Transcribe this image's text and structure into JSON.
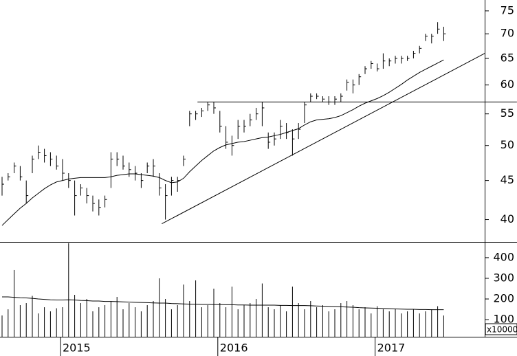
{
  "chart_data": {
    "type": "ohlc",
    "color": "#000000",
    "log_y": true,
    "categories": [
      null,
      null,
      null,
      null,
      null,
      null,
      null,
      null,
      null,
      null,
      "2015",
      null,
      null,
      null,
      null,
      null,
      null,
      null,
      null,
      null,
      null,
      null,
      null,
      null,
      null,
      null,
      null,
      null,
      null,
      null,
      null,
      null,
      null,
      null,
      null,
      null,
      "2016",
      null,
      null,
      null,
      null,
      null,
      null,
      null,
      null,
      null,
      null,
      null,
      null,
      null,
      null,
      null,
      null,
      null,
      null,
      null,
      null,
      null,
      null,
      null,
      null,
      null,
      "2017",
      null,
      null,
      null,
      null,
      null,
      null,
      null,
      null,
      null,
      null,
      null
    ],
    "high": [
      45.5,
      46,
      47.5,
      47,
      45,
      48.5,
      50,
      49.5,
      49,
      48.5,
      48,
      46,
      45,
      44.5,
      44,
      43,
      42.5,
      43,
      49,
      49,
      48.5,
      47.5,
      47,
      46,
      47.5,
      48,
      46,
      44.5,
      45.5,
      45.5,
      48.5,
      55.5,
      55.5,
      56,
      57,
      57,
      55.5,
      53,
      51.5,
      54,
      54,
      55,
      56,
      57,
      52,
      52,
      54,
      53.5,
      52.5,
      53.5,
      57,
      58.5,
      58.5,
      58,
      58,
      58,
      58.5,
      61,
      61,
      62,
      63.5,
      64.5,
      64,
      66,
      65,
      65.5,
      65.5,
      65.5,
      66.5,
      67.5,
      70,
      70,
      72.5,
      71.5
    ],
    "low": [
      43,
      45,
      46,
      45,
      42,
      46,
      48,
      47.5,
      47,
      46.5,
      45,
      44,
      40.5,
      43,
      42,
      41,
      40.5,
      41.5,
      44,
      47,
      46.5,
      45.5,
      45,
      44,
      46,
      45.5,
      43,
      40,
      43,
      43.5,
      47,
      53,
      54,
      54.5,
      55.5,
      55,
      52,
      49.5,
      48.5,
      51,
      52,
      53,
      54,
      53,
      49.5,
      50,
      51,
      51,
      48.5,
      51,
      53.5,
      57,
      57.5,
      57,
      56.5,
      56.5,
      57,
      59,
      58.5,
      60,
      62,
      63,
      62.5,
      63,
      63.5,
      64,
      64,
      64.5,
      65,
      66,
      68.5,
      68,
      70,
      68.5
    ],
    "close": [
      44.5,
      45.5,
      47,
      45.5,
      43,
      48,
      49,
      48.5,
      48,
      47,
      46,
      45,
      43,
      44,
      43,
      42,
      41.5,
      42.5,
      48,
      48,
      47,
      46.5,
      46,
      45,
      47,
      47,
      44,
      43,
      45,
      45,
      48,
      55,
      55,
      55.5,
      56.5,
      56,
      53,
      50.5,
      50,
      53,
      53,
      54,
      55,
      56,
      50.5,
      51,
      53,
      52,
      51,
      52.5,
      56.5,
      58,
      58,
      57.5,
      57,
      57.5,
      58,
      60.5,
      60,
      61.5,
      63,
      64,
      63,
      64.5,
      64.5,
      65,
      65,
      65,
      66,
      67,
      69.5,
      69.5,
      71,
      70
    ],
    "ma": [
      39.3,
      40,
      40.7,
      41.4,
      42,
      42.7,
      43.3,
      43.9,
      44.4,
      44.8,
      45,
      45.2,
      45.3,
      45.4,
      45.4,
      45.4,
      45.4,
      45.4,
      45.5,
      45.7,
      45.8,
      45.9,
      45.9,
      45.8,
      45.7,
      45.6,
      45.4,
      45,
      44.7,
      44.8,
      45.3,
      46.2,
      47,
      47.8,
      48.5,
      49.2,
      49.7,
      50.1,
      50.3,
      50.5,
      50.6,
      50.8,
      51,
      51.2,
      51.3,
      51.5,
      51.7,
      52,
      52.3,
      52.6,
      53.2,
      53.7,
      54,
      54.1,
      54.2,
      54.4,
      54.7,
      55.2,
      55.7,
      56.3,
      56.8,
      57.2,
      57.6,
      58.1,
      58.7,
      59.4,
      60.1,
      60.9,
      61.6,
      62.3,
      62.9,
      63.5,
      64.1,
      64.7
    ],
    "ylim": [
      37.4,
      77.5
    ],
    "yticks": [
      40,
      45,
      50,
      55,
      60,
      65,
      70,
      75
    ],
    "hline": {
      "x": [
        32.3,
        85.1
      ],
      "y": 57
    },
    "trendline": {
      "x": [
        26.4,
        79.8
      ],
      "y": [
        39.5,
        66
      ]
    },
    "volume": {
      "values": [
        120,
        150,
        340,
        170,
        180,
        215,
        130,
        160,
        140,
        155,
        160,
        470,
        220,
        180,
        200,
        140,
        160,
        170,
        190,
        210,
        150,
        180,
        160,
        140,
        170,
        190,
        300,
        200,
        150,
        170,
        270,
        190,
        290,
        160,
        170,
        250,
        180,
        160,
        260,
        150,
        170,
        180,
        200,
        275,
        160,
        150,
        170,
        140,
        260,
        180,
        150,
        190,
        160,
        170,
        140,
        150,
        180,
        190,
        170,
        150,
        160,
        130,
        165,
        150,
        140,
        150,
        130,
        140,
        150,
        130,
        140,
        150,
        165,
        120
      ],
      "ma": [
        210,
        210,
        208,
        206,
        205,
        203,
        200,
        198,
        196,
        195,
        195,
        196,
        195,
        193,
        192,
        190,
        190,
        188,
        188,
        187,
        186,
        185,
        184,
        183,
        182,
        181,
        180,
        180,
        178,
        177,
        176,
        175,
        175,
        174,
        174,
        173,
        173,
        172,
        172,
        171,
        171,
        170,
        170,
        170,
        170,
        170,
        169,
        169,
        168,
        168,
        168,
        167,
        166,
        165,
        164,
        163,
        162,
        161,
        160,
        158,
        157,
        156,
        155,
        154,
        153,
        152,
        151,
        150,
        150,
        149,
        149,
        148,
        148,
        148
      ],
      "ylim": [
        17,
        473
      ],
      "yticks": [
        100,
        200,
        300,
        400
      ],
      "unit_label": "x10000"
    }
  }
}
